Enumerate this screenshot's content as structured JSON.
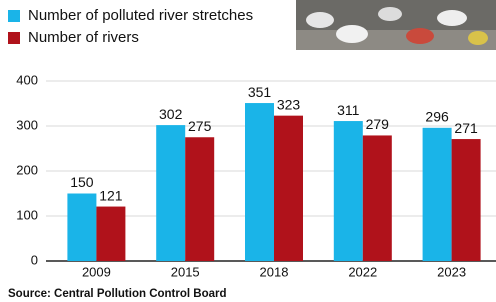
{
  "chart_data": {
    "type": "bar",
    "categories": [
      "2009",
      "2015",
      "2018",
      "2022",
      "2023"
    ],
    "series": [
      {
        "name": "Number of polluted river stretches",
        "color": "#1ab4e8",
        "values": [
          150,
          302,
          351,
          311,
          296
        ]
      },
      {
        "name": "Number of rivers",
        "color": "#b0121b",
        "values": [
          121,
          275,
          323,
          279,
          271
        ]
      }
    ],
    "ylim": [
      0,
      400
    ],
    "yticks": [
      0,
      100,
      200,
      300,
      400
    ],
    "grid": true,
    "source": "Source: Central Pollution Control Board"
  }
}
